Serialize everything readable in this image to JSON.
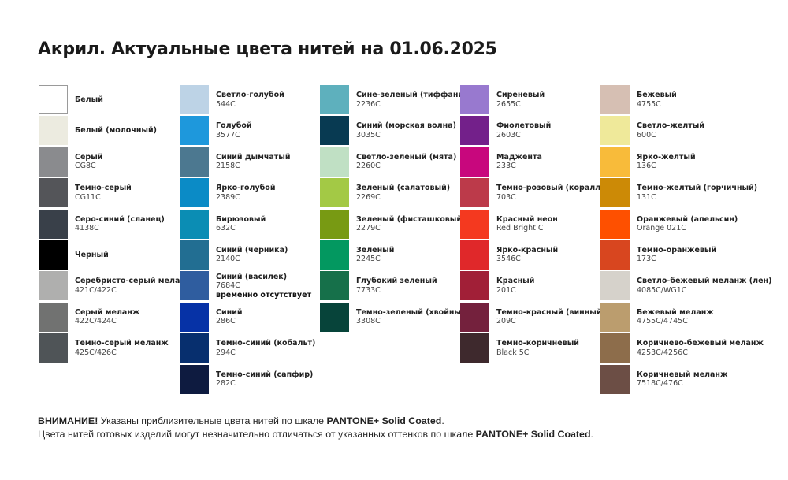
{
  "title": "Акрил. Актуальные цвета нитей на 01.06.2025",
  "columns": [
    [
      {
        "name": "Белый",
        "code": "",
        "color": "#ffffff",
        "bordered": true
      },
      {
        "name": "Белый (молочный)",
        "code": "",
        "color": "#ecebe0"
      },
      {
        "name": "Серый",
        "code": "CG8C",
        "color": "#8a8b8e"
      },
      {
        "name": "Темно-серый",
        "code": "CG11C",
        "color": "#545559"
      },
      {
        "name": "Серо-синий (сланец)",
        "code": "4138C",
        "color": "#394049"
      },
      {
        "name": "Черный",
        "code": "",
        "color": "#000000"
      },
      {
        "name": "Серебристо-серый меланж",
        "code": "421C/422C",
        "color": "#afafae"
      },
      {
        "name": "Серый меланж",
        "code": "422C/424C",
        "color": "#717271"
      },
      {
        "name": "Темно-серый меланж",
        "code": "425C/426C",
        "color": "#4f5457"
      }
    ],
    [
      {
        "name": "Светло-голубой",
        "code": "544C",
        "color": "#bdd3e6"
      },
      {
        "name": "Голубой",
        "code": "3577C",
        "color": "#1e98dc"
      },
      {
        "name": "Синий дымчатый",
        "code": "2158C",
        "color": "#4c7890"
      },
      {
        "name": "Ярко-голубой",
        "code": "2389C",
        "color": "#0b8bc6"
      },
      {
        "name": "Бирюзовый",
        "code": "632C",
        "color": "#0b8db4"
      },
      {
        "name": "Синий (черника)",
        "code": "2140C",
        "color": "#226e92"
      },
      {
        "name": "Синий (василек)",
        "code": "7684C",
        "note": "временно отсутствует",
        "color": "#2f5d9f"
      },
      {
        "name": "Синий",
        "code": "286C",
        "color": "#0632a6"
      },
      {
        "name": "Темно-синий (кобальт)",
        "code": "294C",
        "color": "#072f6e"
      },
      {
        "name": "Темно-синий (сапфир)",
        "code": "282C",
        "color": "#0e1b40"
      }
    ],
    [
      {
        "name": "Сине-зеленый (тиффани)",
        "code": "2236C",
        "color": "#5eb0bd"
      },
      {
        "name": "Синий (морская волна)",
        "code": "3035C",
        "color": "#083a52"
      },
      {
        "name": "Светло-зеленый (мята)",
        "code": "2260C",
        "color": "#c0e0c4"
      },
      {
        "name": "Зеленый (салатовый)",
        "code": "2269C",
        "color": "#a3c945"
      },
      {
        "name": "Зеленый (фисташковый)",
        "code": "2279C",
        "color": "#789a13"
      },
      {
        "name": "Зеленый",
        "code": "2245C",
        "color": "#039860"
      },
      {
        "name": "Глубокий зеленый",
        "code": "7733C",
        "color": "#16704a"
      },
      {
        "name": "Темно-зеленый (хвойный)",
        "code": "3308C",
        "color": "#07443a"
      }
    ],
    [
      {
        "name": "Сиреневый",
        "code": "2655C",
        "color": "#9879cf"
      },
      {
        "name": "Фиолетовый",
        "code": "2603C",
        "color": "#73208a"
      },
      {
        "name": "Маджента",
        "code": "233C",
        "color": "#c8077d"
      },
      {
        "name": "Темно-розовый (коралл)",
        "code": "703C",
        "color": "#bc3a4a"
      },
      {
        "name": "Красный неон",
        "code": "Red Bright C",
        "color": "#f4391f"
      },
      {
        "name": "Ярко-красный",
        "code": "3546C",
        "color": "#e0282a"
      },
      {
        "name": "Красный",
        "code": "201C",
        "color": "#a11f37"
      },
      {
        "name": "Темно-красный (винный)",
        "code": "209C",
        "color": "#74213d"
      },
      {
        "name": "Темно-коричневый",
        "code": "Black 5C",
        "color": "#3e292d"
      }
    ],
    [
      {
        "name": "Бежевый",
        "code": "4755C",
        "color": "#d6bfb3"
      },
      {
        "name": "Светло-желтый",
        "code": "600C",
        "color": "#efe99a"
      },
      {
        "name": "Ярко-желтый",
        "code": "136C",
        "color": "#f8bb3a"
      },
      {
        "name": "Темно-желтый (горчичный)",
        "code": "131C",
        "color": "#cc8a06"
      },
      {
        "name": "Оранжевый (апельсин)",
        "code": "Orange 021C",
        "color": "#fe5000"
      },
      {
        "name": "Темно-оранжевый",
        "code": "173C",
        "color": "#d8461f"
      },
      {
        "name": "Светло-бежевый меланж (лен)",
        "code": "4085C/WG1C",
        "color": "#d6d2cb"
      },
      {
        "name": "Бежевый меланж",
        "code": "4755C/4745C",
        "color": "#bb9d6e"
      },
      {
        "name": "Коричнево-бежевый меланж",
        "code": "4253C/4256C",
        "color": "#8d6d4b"
      },
      {
        "name": "Коричневый меланж",
        "code": "7518C/476C",
        "color": "#6c4e45"
      }
    ]
  ],
  "footer": {
    "line1_bold": "ВНИМАНИЕ!",
    "line1_text": " Указаны приблизительные цвета нитей по шкале ",
    "line1_scale": "PANTONE+ Solid Coated",
    "line1_end": ".",
    "line2_text": "Цвета нитей готовых изделий могут незначительно отличаться от указанных оттенков по шкале ",
    "line2_scale": "PANTONE+ Solid Coated",
    "line2_end": "."
  }
}
